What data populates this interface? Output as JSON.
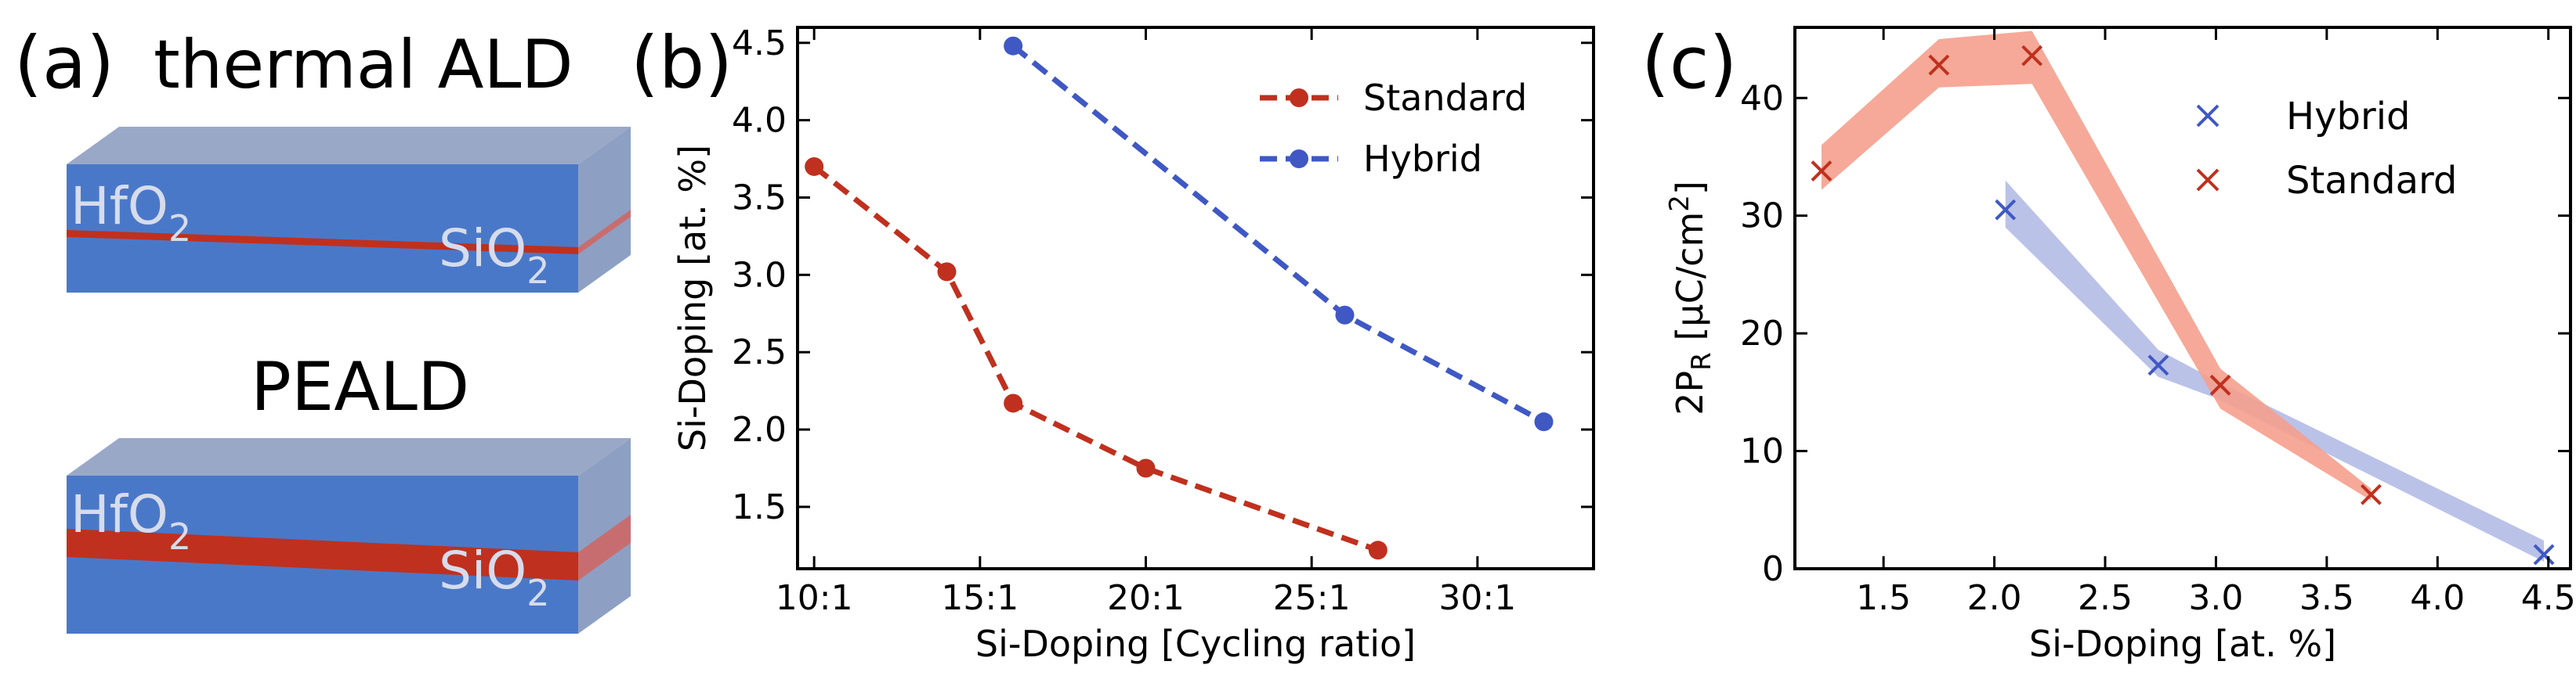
{
  "panel_a": {
    "label": "(a)",
    "title_top": "thermal ALD",
    "title_bottom": "PEALD",
    "block_labels": {
      "left": "HfO",
      "left_sub": "2",
      "right": "SiO",
      "right_sub": "2"
    },
    "colors": {
      "block_front": "#4a78c8",
      "block_top": "#9aa8c8",
      "block_side": "#8da0c4",
      "layer": "#c0301e",
      "text": "#d6dcec"
    }
  },
  "chart_data": [
    {
      "panel": "(b)",
      "type": "line",
      "xlabel": "Si-Doping [Cycling ratio]",
      "ylabel": "Si-Doping [at. %]",
      "xlim": [
        9.5,
        33.5
      ],
      "ylim": [
        1.1,
        4.6
      ],
      "x_ticks": [
        10,
        15,
        20,
        25,
        30
      ],
      "x_tick_labels": [
        "10:1",
        "15:1",
        "20:1",
        "25:1",
        "30:1"
      ],
      "y_ticks": [
        1.5,
        2.0,
        2.5,
        3.0,
        3.5,
        4.0,
        4.5
      ],
      "y_tick_labels": [
        "1.5",
        "2.0",
        "2.5",
        "3.0",
        "3.5",
        "4.0",
        "4.5"
      ],
      "legend_position": "top-right",
      "series": [
        {
          "name": "Standard",
          "color": "#c0301e",
          "x": [
            10,
            14,
            16,
            20,
            27
          ],
          "y": [
            3.7,
            3.02,
            2.17,
            1.75,
            1.22
          ]
        },
        {
          "name": "Hybrid",
          "color": "#3f58c4",
          "x": [
            16,
            26,
            32
          ],
          "y": [
            4.48,
            2.74,
            2.05
          ]
        }
      ]
    },
    {
      "panel": "(c)",
      "type": "scatter",
      "xlabel": "Si-Doping [at. %]",
      "ylabel": "2P_R [µC/cm²]",
      "xlim": [
        1.1,
        4.6
      ],
      "ylim": [
        0,
        46
      ],
      "x_ticks": [
        1.5,
        2.0,
        2.5,
        3.0,
        3.5,
        4.0,
        4.5
      ],
      "x_tick_labels": [
        "1.5",
        "2.0",
        "2.5",
        "3.0",
        "3.5",
        "4.0",
        "4.5"
      ],
      "y_ticks": [
        0,
        10,
        20,
        30,
        40
      ],
      "y_tick_labels": [
        "0",
        "10",
        "20",
        "30",
        "40"
      ],
      "legend_position": "top-right",
      "series": [
        {
          "name": "Hybrid",
          "color": "#3f58c4",
          "band_color": "#b3bbe6",
          "x": [
            2.05,
            2.74,
            4.48
          ],
          "y": [
            30.5,
            17.3,
            1.2
          ],
          "band_x": [
            2.05,
            2.74,
            3.0,
            4.48
          ],
          "band_lo": [
            29.0,
            16.3,
            14.5,
            0.6
          ],
          "band_hi": [
            33.0,
            18.6,
            16.0,
            2.4
          ]
        },
        {
          "name": "Standard",
          "color": "#c0301e",
          "band_color": "#f5a08d",
          "x": [
            1.22,
            1.75,
            2.17,
            3.02,
            3.7
          ],
          "y": [
            33.8,
            42.8,
            43.6,
            15.6,
            6.3
          ],
          "band_x": [
            1.22,
            1.75,
            2.17,
            3.02,
            3.7
          ],
          "band_lo": [
            32.2,
            40.9,
            41.2,
            13.6,
            5.8
          ],
          "band_hi": [
            36.0,
            45.0,
            45.7,
            17.0,
            6.8
          ]
        }
      ]
    }
  ]
}
